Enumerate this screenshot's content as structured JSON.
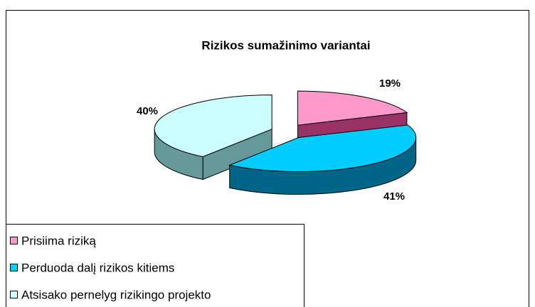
{
  "chart_data": {
    "type": "pie",
    "title": "Rizikos sumažinimo variantai",
    "categories": [
      "Prisiima riziką",
      "Perduoda dalį rizikos kitiems",
      "Atsisako pernelyg rizikingo projekto"
    ],
    "values": [
      19,
      41,
      40
    ],
    "value_labels": [
      "19%",
      "41%",
      "40%"
    ],
    "colors": [
      "#ff99cc",
      "#00ccff",
      "#ccffff"
    ],
    "side_colors": [
      "#993366",
      "#006688",
      "#669999"
    ],
    "legend": "bottom-left"
  }
}
